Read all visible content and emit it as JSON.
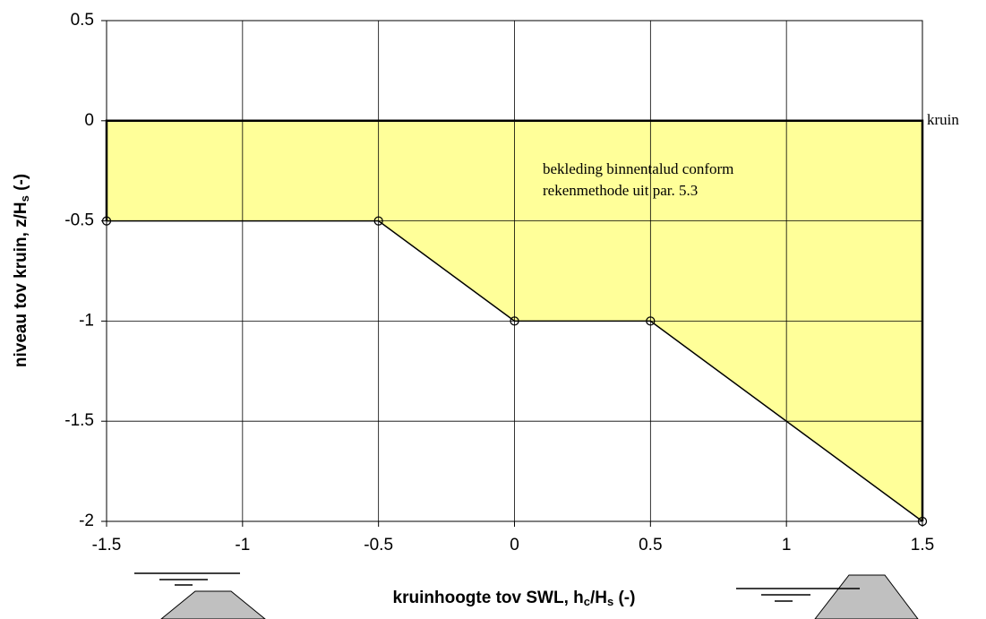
{
  "chart_data": {
    "type": "area",
    "x": [
      -1.5,
      -0.5,
      0,
      0.5,
      1.5
    ],
    "values": [
      -0.5,
      -0.5,
      -1,
      -1,
      -2
    ],
    "color": "#ffff99",
    "line_color": "#000000",
    "x_label_parts": [
      "kruinhoogte tov SWL, h",
      "c",
      "/H",
      "s",
      " (-)"
    ],
    "y_label_parts": [
      "niveau tov kruin, z/H",
      "s",
      " (-)"
    ],
    "annotations": [
      "kruin",
      "bekleding binnentalud conform",
      "rekenmethode uit par. 5.3"
    ],
    "xlim": [
      -1.5,
      1.5
    ],
    "xticks": [
      -1.5,
      -1,
      -0.5,
      0,
      0.5,
      1,
      1.5
    ],
    "ylim": [
      -2,
      0.5
    ],
    "yticks": [
      0.5,
      0,
      -0.5,
      -1,
      -1.5,
      -2
    ],
    "grid": true
  }
}
